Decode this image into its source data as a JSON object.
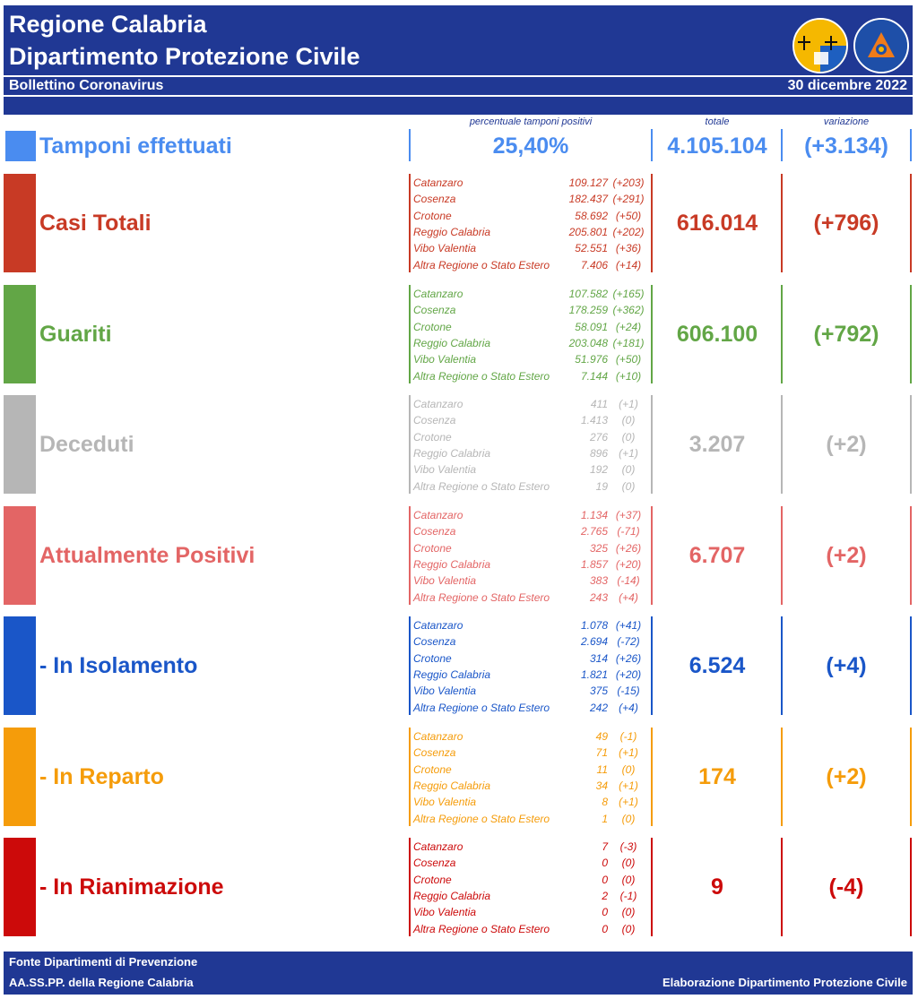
{
  "header": {
    "title1": "Regione Calabria",
    "title2": "Dipartimento Protezione Civile",
    "subtitle": "Bollettino Coronavirus",
    "date": "30 dicembre 2022",
    "logo2_text": "PROTEZIONE CIVILE Regione Calabria"
  },
  "columns": {
    "pct_header": "percentuale tamponi positivi",
    "total_header": "totale",
    "var_header": "variazione"
  },
  "tamponi": {
    "label": "Tamponi effettuati",
    "pct": "25,40%",
    "total": "4.105.104",
    "var": "(+3.134)",
    "color": "#4a8cf0"
  },
  "sections": [
    {
      "id": "casi",
      "label": "Casi Totali",
      "color": "#c83a25",
      "total": "616.014",
      "var": "(+796)",
      "rows": [
        {
          "name": "Catanzaro",
          "value": "109.127",
          "var": "(+203)"
        },
        {
          "name": "Cosenza",
          "value": "182.437",
          "var": "(+291)"
        },
        {
          "name": "Crotone",
          "value": "58.692",
          "var": "(+50)"
        },
        {
          "name": "Reggio Calabria",
          "value": "205.801",
          "var": "(+202)"
        },
        {
          "name": "Vibo Valentia",
          "value": "52.551",
          "var": "(+36)"
        },
        {
          "name": "Altra Regione o Stato Estero",
          "value": "7.406",
          "var": "(+14)"
        }
      ]
    },
    {
      "id": "guariti",
      "label": "Guariti",
      "color": "#62a646",
      "total": "606.100",
      "var": "(+792)",
      "rows": [
        {
          "name": "Catanzaro",
          "value": "107.582",
          "var": "(+165)"
        },
        {
          "name": "Cosenza",
          "value": "178.259",
          "var": "(+362)"
        },
        {
          "name": "Crotone",
          "value": "58.091",
          "var": "(+24)"
        },
        {
          "name": "Reggio Calabria",
          "value": "203.048",
          "var": "(+181)"
        },
        {
          "name": "Vibo Valentia",
          "value": "51.976",
          "var": "(+50)"
        },
        {
          "name": "Altra Regione o Stato Estero",
          "value": "7.144",
          "var": "(+10)"
        }
      ]
    },
    {
      "id": "deceduti",
      "label": "Deceduti",
      "color": "#b6b6b6",
      "total": "3.207",
      "var": "(+2)",
      "rows": [
        {
          "name": "Catanzaro",
          "value": "411",
          "var": "(+1)"
        },
        {
          "name": "Cosenza",
          "value": "1.413",
          "var": "(0)"
        },
        {
          "name": "Crotone",
          "value": "276",
          "var": "(0)"
        },
        {
          "name": "Reggio Calabria",
          "value": "896",
          "var": "(+1)"
        },
        {
          "name": "Vibo Valentia",
          "value": "192",
          "var": "(0)"
        },
        {
          "name": "Altra Regione o Stato Estero",
          "value": "19",
          "var": "(0)"
        }
      ]
    },
    {
      "id": "positivi",
      "label": "Attualmente Positivi",
      "color": "#e36565",
      "total": "6.707",
      "var": "(+2)",
      "rows": [
        {
          "name": "Catanzaro",
          "value": "1.134",
          "var": "(+37)"
        },
        {
          "name": "Cosenza",
          "value": "2.765",
          "var": "(-71)"
        },
        {
          "name": "Crotone",
          "value": "325",
          "var": "(+26)"
        },
        {
          "name": "Reggio Calabria",
          "value": "1.857",
          "var": "(+20)"
        },
        {
          "name": "Vibo Valentia",
          "value": "383",
          "var": "(-14)"
        },
        {
          "name": "Altra Regione o Stato Estero",
          "value": "243",
          "var": "(+4)"
        }
      ]
    },
    {
      "id": "isolamento",
      "label": " - In Isolamento",
      "color": "#1a56c8",
      "total": "6.524",
      "var": "(+4)",
      "rows": [
        {
          "name": "Catanzaro",
          "value": "1.078",
          "var": "(+41)"
        },
        {
          "name": "Cosenza",
          "value": "2.694",
          "var": "(-72)"
        },
        {
          "name": "Crotone",
          "value": "314",
          "var": "(+26)"
        },
        {
          "name": "Reggio Calabria",
          "value": "1.821",
          "var": "(+20)"
        },
        {
          "name": "Vibo Valentia",
          "value": "375",
          "var": "(-15)"
        },
        {
          "name": "Altra Regione o Stato Estero",
          "value": "242",
          "var": "(+4)"
        }
      ]
    },
    {
      "id": "reparto",
      "label": " - In Reparto",
      "color": "#f59c0a",
      "total": "174",
      "var": "(+2)",
      "rows": [
        {
          "name": "Catanzaro",
          "value": "49",
          "var": "(-1)"
        },
        {
          "name": "Cosenza",
          "value": "71",
          "var": "(+1)"
        },
        {
          "name": "Crotone",
          "value": "11",
          "var": "(0)"
        },
        {
          "name": "Reggio Calabria",
          "value": "34",
          "var": "(+1)"
        },
        {
          "name": "Vibo Valentia",
          "value": "8",
          "var": "(+1)"
        },
        {
          "name": "Altra Regione o Stato Estero",
          "value": "1",
          "var": "(0)"
        }
      ]
    },
    {
      "id": "rianimazione",
      "label": " - In Rianimazione",
      "color": "#cc0a0a",
      "total": "9",
      "var": "(-4)",
      "rows": [
        {
          "name": "Catanzaro",
          "value": "7",
          "var": "(-3)"
        },
        {
          "name": "Cosenza",
          "value": "0",
          "var": "(0)"
        },
        {
          "name": "Crotone",
          "value": "0",
          "var": "(0)"
        },
        {
          "name": "Reggio Calabria",
          "value": "2",
          "var": "(-1)"
        },
        {
          "name": "Vibo Valentia",
          "value": "0",
          "var": "(0)"
        },
        {
          "name": "Altra Regione o Stato Estero",
          "value": "0",
          "var": "(0)"
        }
      ]
    }
  ],
  "footer": {
    "source1": "Fonte Dipartimenti di Prevenzione",
    "source2": "AA.SS.PP.  della Regione Calabria",
    "credit": "Elaborazione Dipartimento Protezione Civile"
  }
}
